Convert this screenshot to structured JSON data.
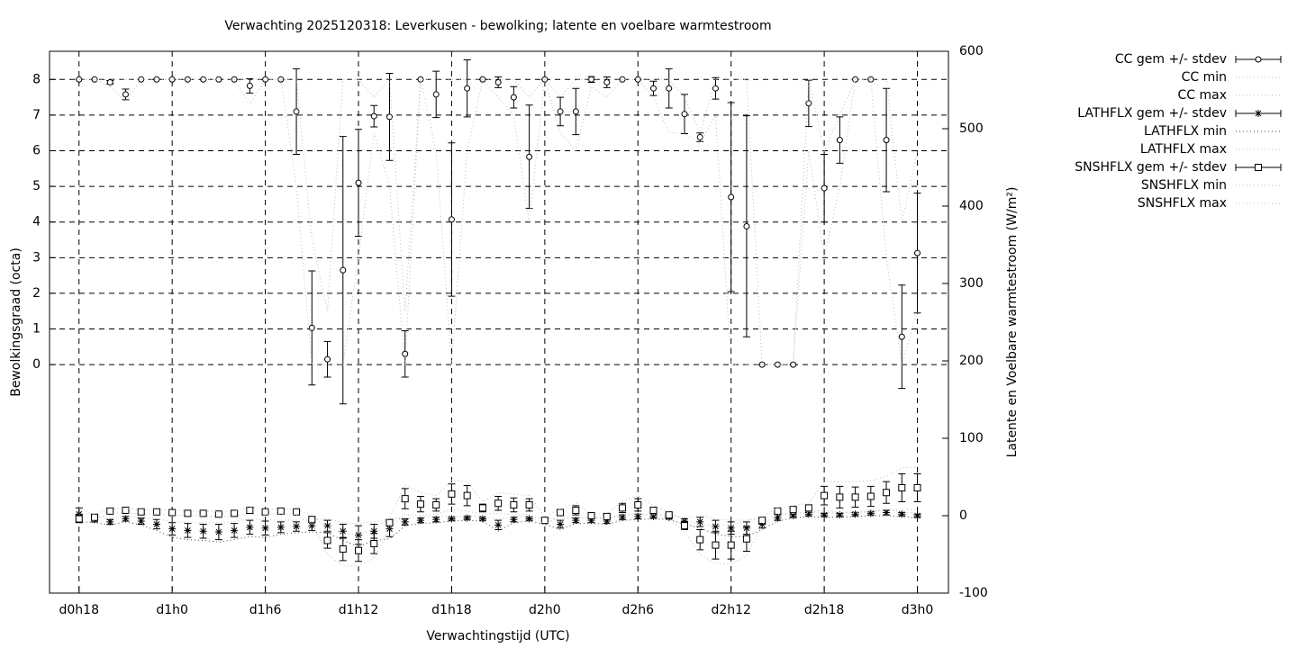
{
  "chart_data": {
    "type": "errorbar",
    "title": "Verwachting 2025120318: Leverkusen - bewolking; latente en voelbare warmtestroom",
    "x_label": "Verwachtingstijd (UTC)",
    "y_label": "Bewolkingsgraad (octa)",
    "y2_label": "Latente en Voelbare warmtestroom (W/m²)",
    "x": [
      18,
      19,
      20,
      21,
      22,
      23,
      24,
      25,
      26,
      27,
      28,
      29,
      30,
      31,
      32,
      33,
      34,
      35,
      36,
      37,
      38,
      39,
      40,
      41,
      42,
      43,
      44,
      45,
      46,
      47,
      48,
      49,
      50,
      51,
      52,
      53,
      54,
      55,
      56,
      57,
      58,
      59,
      60,
      61,
      62,
      63,
      64,
      65,
      66,
      67,
      68,
      69,
      70,
      71,
      72
    ],
    "xlim": [
      16.1,
      74.0
    ],
    "xticks": [
      {
        "value": 18,
        "label": "d0h18"
      },
      {
        "value": 24,
        "label": "d1h0"
      },
      {
        "value": 30,
        "label": "d1h6"
      },
      {
        "value": 36,
        "label": "d1h12"
      },
      {
        "value": 42,
        "label": "d1h18"
      },
      {
        "value": 48,
        "label": "d2h0"
      },
      {
        "value": 54,
        "label": "d2h6"
      },
      {
        "value": 60,
        "label": "d2h12"
      },
      {
        "value": 66,
        "label": "d2h18"
      },
      {
        "value": 72,
        "label": "d3h0"
      }
    ],
    "ylim": [
      -6.41,
      8.79
    ],
    "yticks": [
      0,
      1,
      2,
      3,
      4,
      5,
      6,
      7,
      8
    ],
    "y2lim": [
      -100,
      600
    ],
    "y2ticks": [
      -100,
      0,
      100,
      200,
      300,
      400,
      500,
      600
    ],
    "grid": true,
    "legend": "outside-right-top",
    "series": [
      {
        "name": "CC gem +/- stdev",
        "color": "#000000",
        "marker": "circle",
        "style": "errorbar",
        "axis": "y",
        "values": [
          8,
          8,
          7.92,
          7.58,
          8,
          8,
          8,
          8,
          8,
          8,
          8,
          7.82,
          8,
          8,
          7.1,
          1.03,
          0.15,
          2.65,
          5.1,
          6.97,
          6.95,
          0.3,
          8,
          7.58,
          4.07,
          7.75,
          8,
          7.92,
          7.5,
          5.83,
          8,
          7.1,
          7.1,
          8,
          7.92,
          8,
          8,
          7.75,
          7.75,
          7.03,
          6.38,
          7.75,
          4.7,
          3.88,
          0,
          0,
          0,
          7.33,
          4.95,
          6.3,
          8,
          8,
          6.3,
          0.78,
          3.13
        ],
        "errors": [
          0,
          0,
          0.05,
          0.15,
          0,
          0,
          0,
          0,
          0,
          0,
          0,
          0.2,
          0,
          0,
          1.2,
          1.6,
          0.5,
          3.75,
          1.5,
          0.3,
          1.22,
          0.65,
          0,
          0.65,
          2.15,
          0.8,
          0,
          0.15,
          0.3,
          1.45,
          0,
          0.4,
          0.65,
          0.08,
          0.15,
          0,
          0,
          0.2,
          0.55,
          0.55,
          0.12,
          0.3,
          2.65,
          3.1,
          0,
          0,
          0,
          0.65,
          0.95,
          0.65,
          0,
          0,
          1.45,
          1.45,
          1.68
        ]
      },
      {
        "name": "CC min",
        "color": "#bbbbbb",
        "style": "dotted",
        "axis": "y",
        "values": [
          8,
          8,
          7.8,
          7.4,
          8,
          8,
          8,
          8,
          8,
          8,
          8,
          7.3,
          8,
          8,
          5,
          0,
          0,
          0,
          3,
          6.5,
          5,
          0,
          8,
          6,
          0,
          6,
          8,
          7.5,
          7,
          4,
          8,
          6.5,
          6,
          7.8,
          7.5,
          8,
          8,
          7.5,
          6.5,
          6.5,
          6.2,
          7,
          0,
          0,
          0,
          0,
          0,
          6,
          3,
          5,
          8,
          8,
          3,
          0,
          1.5
        ]
      },
      {
        "name": "CC max",
        "color": "#bbbbbb",
        "style": "dotted",
        "axis": "y",
        "values": [
          8,
          8,
          8,
          8,
          8,
          8,
          8,
          8,
          8,
          8,
          8,
          8,
          8,
          8,
          8,
          3.5,
          1.5,
          8,
          8,
          7.5,
          8,
          1.5,
          8,
          8,
          8,
          8,
          8,
          8,
          8,
          7.5,
          8,
          7.5,
          8,
          8,
          8,
          8,
          8,
          8,
          8,
          7.5,
          6.5,
          8,
          8,
          8,
          0,
          0,
          0,
          8,
          6,
          7,
          8,
          8,
          8,
          4,
          6
        ]
      },
      {
        "name": "LATHFLX gem +/- stdev",
        "color": "#000000",
        "marker": "star",
        "style": "errorbar",
        "axis": "y2",
        "values": [
          2,
          -5,
          -8,
          -4,
          -7,
          -11,
          -17,
          -19,
          -20,
          -21,
          -19,
          -15,
          -16,
          -15,
          -14,
          -13,
          -13,
          -20,
          -25,
          -20,
          -17,
          -8,
          -6,
          -5,
          -4,
          -3,
          -4,
          -12,
          -5,
          -4,
          -7,
          -11,
          -6,
          -6,
          -7,
          -2,
          -1,
          -1,
          -2,
          -7,
          -8,
          -14,
          -16,
          -16,
          -11,
          -3,
          0,
          2,
          1,
          1,
          2,
          3,
          4,
          2,
          0
        ],
        "errors": [
          8,
          3,
          3,
          3,
          4,
          6,
          8,
          9,
          9,
          10,
          9,
          9,
          9,
          7,
          6,
          6,
          7,
          9,
          12,
          9,
          10,
          4,
          3,
          3,
          2,
          2,
          2,
          6,
          3,
          2,
          3,
          5,
          3,
          3,
          3,
          3,
          3,
          2,
          2,
          3,
          6,
          8,
          8,
          8,
          5,
          3,
          2,
          2,
          2,
          2,
          2,
          2,
          3,
          2,
          2
        ]
      },
      {
        "name": "LATHFLX min",
        "color": "#444444",
        "style": "dotted",
        "axis": "y2",
        "values": [
          -8,
          -9,
          -12,
          -8,
          -12,
          -19,
          -28,
          -31,
          -32,
          -34,
          -31,
          -27,
          -28,
          -24,
          -22,
          -21,
          -22,
          -32,
          -40,
          -32,
          -30,
          -13,
          -10,
          -9,
          -7,
          -6,
          -7,
          -20,
          -9,
          -7,
          -11,
          -18,
          -10,
          -10,
          -11,
          -6,
          -5,
          -4,
          -5,
          -11,
          -16,
          -24,
          -27,
          -27,
          -18,
          -7,
          -3,
          -1,
          -2,
          -2,
          -1,
          0,
          0,
          -1,
          -3
        ]
      },
      {
        "name": "LATHFLX max",
        "color": "#bbbbbb",
        "style": "dotted",
        "axis": "y2",
        "values": [
          10,
          0,
          -4,
          0,
          -2,
          -4,
          -8,
          -8,
          -9,
          -9,
          -8,
          -4,
          -5,
          -6,
          -6,
          -5,
          -4,
          -9,
          -10,
          -8,
          -4,
          -3,
          -2,
          -1,
          -1,
          0,
          -1,
          -5,
          -1,
          -1,
          -3,
          -5,
          -2,
          -2,
          -3,
          1,
          2,
          2,
          1,
          -3,
          0,
          -4,
          -6,
          -6,
          -4,
          1,
          3,
          5,
          4,
          4,
          5,
          6,
          8,
          5,
          3
        ]
      },
      {
        "name": "SNSHFLX gem +/- stdev",
        "color": "#000000",
        "marker": "square",
        "style": "errorbar",
        "axis": "y2",
        "values": [
          -4,
          -2,
          6,
          7,
          5,
          5,
          4,
          3,
          3,
          2,
          3,
          7,
          5,
          6,
          5,
          -5,
          -32,
          -43,
          -45,
          -36,
          -9,
          22,
          15,
          14,
          28,
          26,
          10,
          16,
          14,
          14,
          -6,
          4,
          7,
          0,
          -1,
          10,
          14,
          7,
          1,
          -13,
          -31,
          -38,
          -38,
          -30,
          -6,
          6,
          8,
          10,
          26,
          24,
          24,
          25,
          30,
          36,
          36
        ],
        "errors": [
          5,
          3,
          2,
          2,
          2,
          2,
          2,
          2,
          2,
          2,
          2,
          3,
          2,
          2,
          2,
          3,
          10,
          15,
          14,
          13,
          4,
          13,
          10,
          8,
          13,
          13,
          5,
          9,
          9,
          8,
          3,
          3,
          6,
          2,
          2,
          6,
          8,
          4,
          2,
          5,
          13,
          18,
          18,
          16,
          3,
          3,
          3,
          4,
          12,
          14,
          13,
          13,
          14,
          18,
          18
        ]
      },
      {
        "name": "SNSHFLX min",
        "color": "#bbbbbb",
        "style": "dotted",
        "axis": "y2",
        "values": [
          -10,
          -6,
          3,
          4,
          2,
          2,
          1,
          0,
          0,
          -1,
          0,
          2,
          1,
          2,
          1,
          -10,
          -50,
          -65,
          -65,
          -55,
          -16,
          2,
          0,
          2,
          8,
          6,
          2,
          3,
          1,
          2,
          -11,
          -1,
          -2,
          -3,
          -4,
          1,
          2,
          1,
          -3,
          -21,
          -50,
          -62,
          -62,
          -52,
          -11,
          2,
          3,
          4,
          8,
          4,
          4,
          5,
          8,
          8,
          8
        ]
      },
      {
        "name": "SNSHFLX max",
        "color": "#bbbbbb",
        "style": "dotted",
        "axis": "y2",
        "values": [
          2,
          2,
          9,
          10,
          8,
          8,
          7,
          6,
          6,
          5,
          6,
          11,
          8,
          9,
          8,
          0,
          -16,
          -22,
          -25,
          -17,
          -3,
          40,
          30,
          26,
          46,
          44,
          18,
          30,
          28,
          26,
          -1,
          9,
          16,
          3,
          2,
          19,
          26,
          13,
          4,
          -5,
          -12,
          -12,
          -12,
          -6,
          -1,
          10,
          13,
          16,
          44,
          44,
          44,
          45,
          51,
          62,
          62
        ]
      }
    ]
  }
}
